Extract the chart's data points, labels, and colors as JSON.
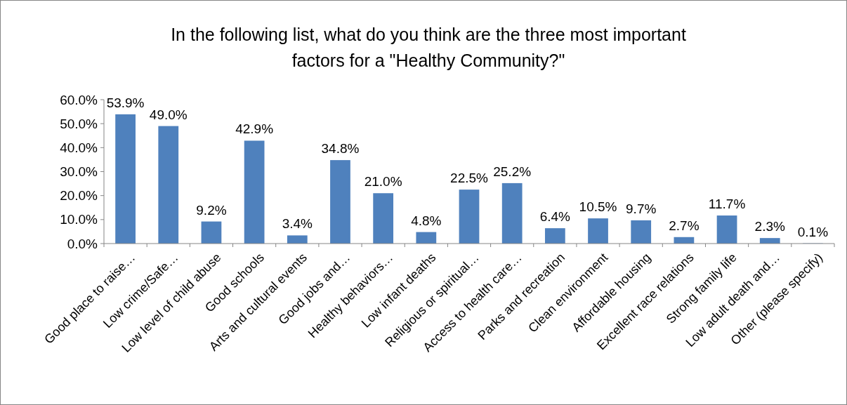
{
  "chart_data": {
    "type": "bar",
    "title": "In the following list, what do you think are the three most important\nfactors for a \"Healthy Community?\"",
    "categories": [
      "Good place to raise…",
      "Low crime/Safe…",
      "Low level of child abuse",
      "Good schools",
      "Arts and cultural events",
      "Good jobs and…",
      "Healthy behaviors…",
      "Low infant deaths",
      "Religious or spiritual…",
      "Access to health care…",
      "Parks and recreation",
      "Clean environment",
      "Affordable housing",
      "Excellent race relations",
      "Strong family life",
      "Low adult death and…",
      "Other (please specify)"
    ],
    "values": [
      53.9,
      49.0,
      9.2,
      42.9,
      3.4,
      34.8,
      21.0,
      4.8,
      22.5,
      25.2,
      6.4,
      10.5,
      9.7,
      2.7,
      11.7,
      2.3,
      0.1
    ],
    "value_labels": [
      "53.9%",
      "49.0%",
      "9.2%",
      "42.9%",
      "3.4%",
      "34.8%",
      "21.0%",
      "4.8%",
      "22.5%",
      "25.2%",
      "6.4%",
      "10.5%",
      "9.7%",
      "2.7%",
      "11.7%",
      "2.3%",
      "0.1%"
    ],
    "color": "#4f81bd",
    "ylim": [
      0,
      60
    ],
    "yticks": [
      {
        "value": 0,
        "label": "0.0%"
      },
      {
        "value": 10,
        "label": "10.0%"
      },
      {
        "value": 20,
        "label": "20.0%"
      },
      {
        "value": 30,
        "label": "30.0%"
      },
      {
        "value": 40,
        "label": "40.0%"
      },
      {
        "value": 50,
        "label": "50.0%"
      },
      {
        "value": 60,
        "label": "60.0%"
      }
    ],
    "grid": false
  }
}
